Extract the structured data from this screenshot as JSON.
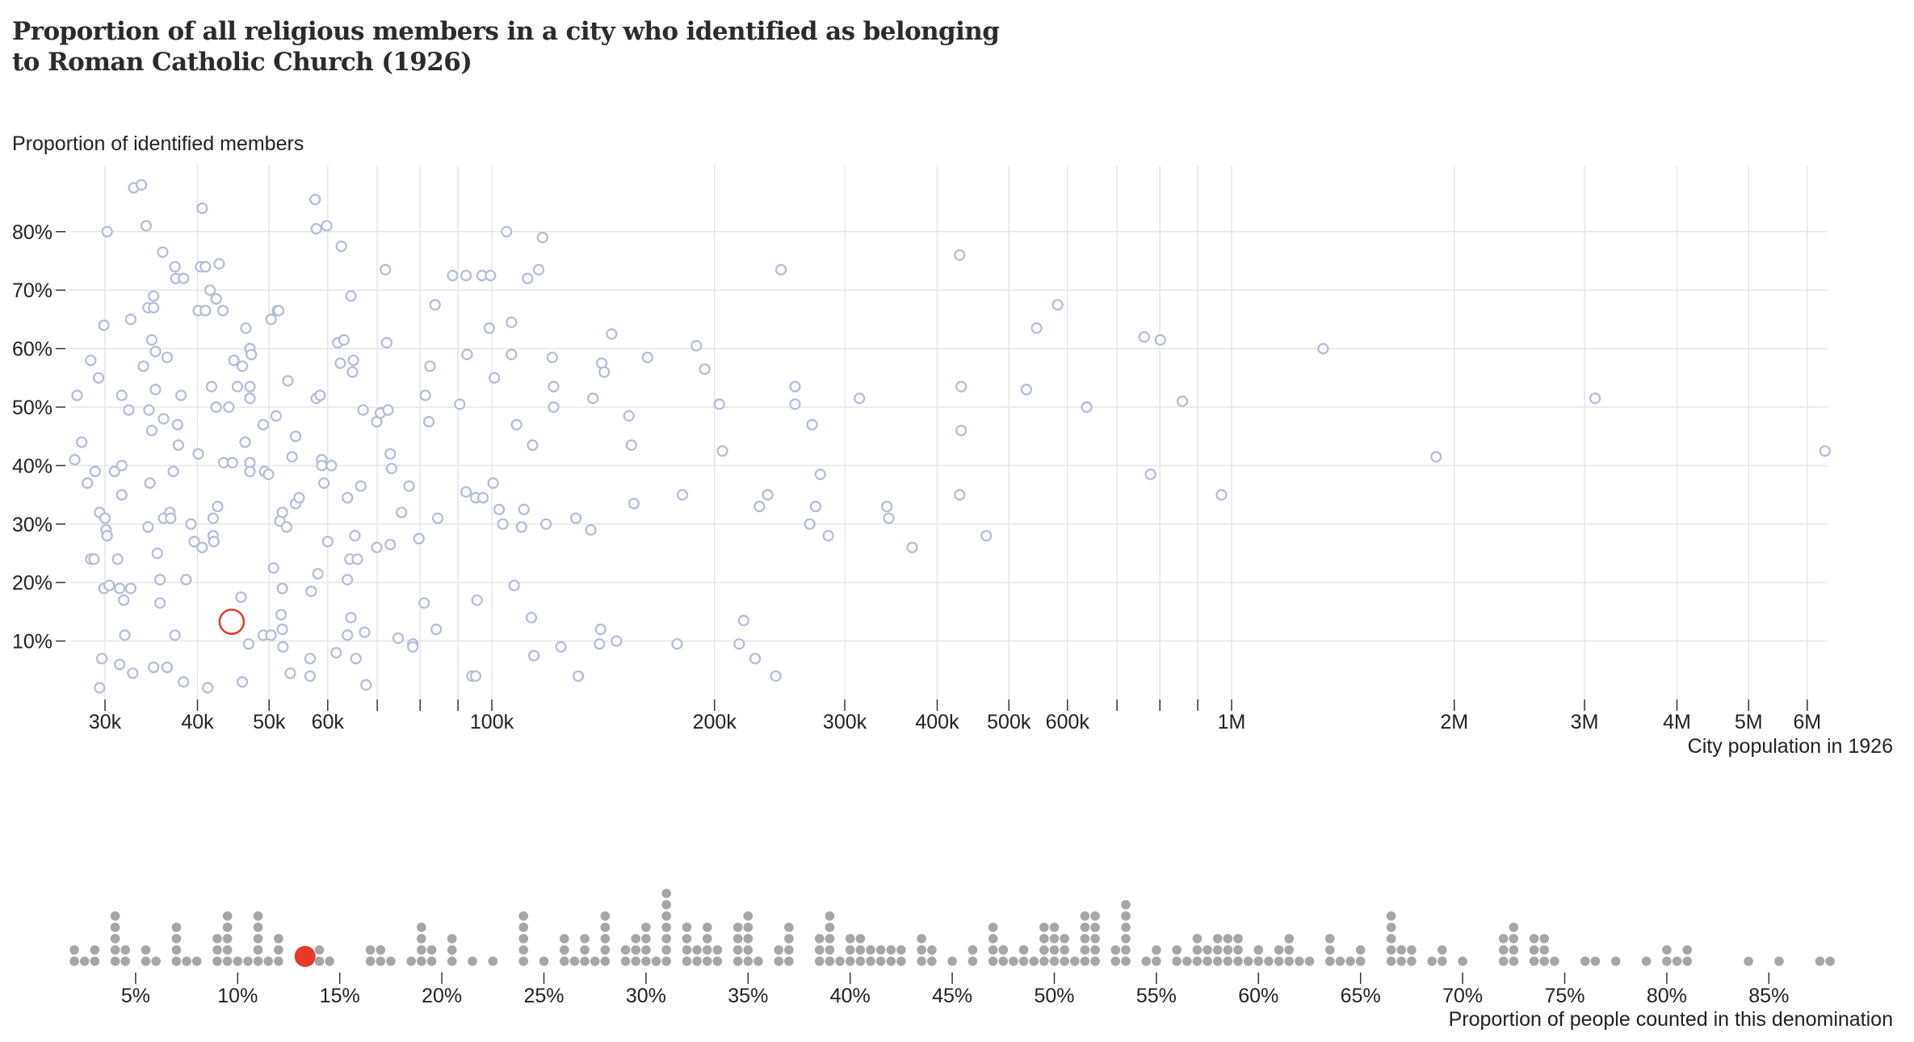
{
  "chart_data": [
    {
      "type": "scatter",
      "title": "Proportion of all religious members in a city who identified as belonging to Roman Catholic Church (1926)",
      "ylabel": "Proportion of identified members",
      "xlabel": "City population in 1926",
      "xscale": "log",
      "xlim": [
        27000,
        6600000
      ],
      "ylim": [
        0,
        90
      ],
      "grid": true,
      "x_ticks": [
        {
          "value": 30000,
          "label": "30k"
        },
        {
          "value": 40000,
          "label": "40k"
        },
        {
          "value": 50000,
          "label": "50k"
        },
        {
          "value": 60000,
          "label": "60k"
        },
        {
          "value": 70000,
          "label": ""
        },
        {
          "value": 80000,
          "label": ""
        },
        {
          "value": 90000,
          "label": ""
        },
        {
          "value": 100000,
          "label": "100k"
        },
        {
          "value": 200000,
          "label": "200k"
        },
        {
          "value": 300000,
          "label": "300k"
        },
        {
          "value": 400000,
          "label": "400k"
        },
        {
          "value": 500000,
          "label": "500k"
        },
        {
          "value": 600000,
          "label": "600k"
        },
        {
          "value": 700000,
          "label": ""
        },
        {
          "value": 800000,
          "label": ""
        },
        {
          "value": 900000,
          "label": ""
        },
        {
          "value": 1000000,
          "label": "1M"
        },
        {
          "value": 2000000,
          "label": "2M"
        },
        {
          "value": 3000000,
          "label": "3M"
        },
        {
          "value": 4000000,
          "label": "4M"
        },
        {
          "value": 5000000,
          "label": "5M"
        },
        {
          "value": 6000000,
          "label": "6M"
        }
      ],
      "y_ticks": [
        {
          "value": 10,
          "label": "10%"
        },
        {
          "value": 20,
          "label": "20%"
        },
        {
          "value": 30,
          "label": "30%"
        },
        {
          "value": 40,
          "label": "40%"
        },
        {
          "value": 50,
          "label": "50%"
        },
        {
          "value": 60,
          "label": "60%"
        },
        {
          "value": 70,
          "label": "70%"
        },
        {
          "value": 80,
          "label": "80%"
        }
      ],
      "colors": {
        "point": "#b3bdd8",
        "highlight": "#e8392a",
        "grid": "#e6e6e6"
      },
      "highlight": [
        44500,
        13.3
      ],
      "points": [
        [
          27500,
          52
        ],
        [
          27900,
          44
        ],
        [
          27300,
          41
        ],
        [
          28400,
          37
        ],
        [
          28700,
          58
        ],
        [
          29100,
          39
        ],
        [
          28700,
          24
        ],
        [
          29000,
          24
        ],
        [
          29400,
          55
        ],
        [
          29500,
          32
        ],
        [
          29900,
          64
        ],
        [
          30000,
          31
        ],
        [
          30100,
          29
        ],
        [
          30200,
          28
        ],
        [
          30200,
          80
        ],
        [
          29900,
          19
        ],
        [
          29700,
          7
        ],
        [
          29500,
          2
        ],
        [
          30400,
          19.5
        ],
        [
          30900,
          39
        ],
        [
          31200,
          24
        ],
        [
          31400,
          19
        ],
        [
          31600,
          52
        ],
        [
          31600,
          40
        ],
        [
          31600,
          35
        ],
        [
          31800,
          17
        ],
        [
          31900,
          11
        ],
        [
          32300,
          49.5
        ],
        [
          32500,
          19
        ],
        [
          32500,
          65
        ],
        [
          32800,
          87.5
        ],
        [
          32700,
          4.5
        ],
        [
          31400,
          6
        ],
        [
          33600,
          88
        ],
        [
          33800,
          57
        ],
        [
          34100,
          81
        ],
        [
          34300,
          29.5
        ],
        [
          34300,
          67
        ],
        [
          34400,
          49.5
        ],
        [
          34500,
          37
        ],
        [
          34700,
          61.5
        ],
        [
          34700,
          46
        ],
        [
          34900,
          69
        ],
        [
          34900,
          67
        ],
        [
          35100,
          59.5
        ],
        [
          34900,
          5.5
        ],
        [
          35100,
          53
        ],
        [
          35300,
          25
        ],
        [
          35600,
          20.5
        ],
        [
          35600,
          16.5
        ],
        [
          35900,
          76.5
        ],
        [
          36000,
          48
        ],
        [
          36000,
          31
        ],
        [
          36400,
          58.5
        ],
        [
          36700,
          32
        ],
        [
          36400,
          5.5
        ],
        [
          36800,
          31
        ],
        [
          37100,
          39
        ],
        [
          37300,
          74
        ],
        [
          37400,
          72
        ],
        [
          37300,
          11
        ],
        [
          37600,
          47
        ],
        [
          37700,
          43.5
        ],
        [
          38000,
          52
        ],
        [
          38300,
          3
        ],
        [
          38300,
          72
        ],
        [
          38600,
          20.5
        ],
        [
          39200,
          30
        ],
        [
          39600,
          27
        ],
        [
          40100,
          66.5
        ],
        [
          40100,
          42
        ],
        [
          40400,
          74
        ],
        [
          40600,
          84
        ],
        [
          40600,
          26
        ],
        [
          41000,
          74
        ],
        [
          41000,
          66.5
        ],
        [
          41300,
          2
        ],
        [
          41600,
          70
        ],
        [
          41800,
          53.5
        ],
        [
          42000,
          31
        ],
        [
          42000,
          28
        ],
        [
          42100,
          27
        ],
        [
          42400,
          50
        ],
        [
          42400,
          68.5
        ],
        [
          42600,
          33
        ],
        [
          42800,
          74.5
        ],
        [
          43300,
          66.5
        ],
        [
          43400,
          40.5
        ],
        [
          44100,
          50
        ],
        [
          44600,
          40.5
        ],
        [
          44800,
          58
        ],
        [
          45300,
          53.5
        ],
        [
          45800,
          17.5
        ],
        [
          46000,
          3
        ],
        [
          46000,
          57
        ],
        [
          46400,
          44
        ],
        [
          46500,
          63.5
        ],
        [
          46900,
          9.5
        ],
        [
          47100,
          60
        ],
        [
          47100,
          53.5
        ],
        [
          47100,
          51.5
        ],
        [
          47100,
          40.5
        ],
        [
          47300,
          59
        ],
        [
          47100,
          39
        ],
        [
          49100,
          47
        ],
        [
          49100,
          11
        ],
        [
          49300,
          39
        ],
        [
          49900,
          38.5
        ],
        [
          50300,
          65
        ],
        [
          50300,
          11
        ],
        [
          50700,
          22.5
        ],
        [
          51300,
          66.5
        ],
        [
          51100,
          48.5
        ],
        [
          51500,
          66.5
        ],
        [
          51700,
          30.5
        ],
        [
          51900,
          14.5
        ],
        [
          52100,
          32
        ],
        [
          52100,
          19
        ],
        [
          52100,
          12
        ],
        [
          52200,
          9
        ],
        [
          52800,
          29.5
        ],
        [
          53000,
          54.5
        ],
        [
          53400,
          4.5
        ],
        [
          53700,
          41.5
        ],
        [
          54300,
          45
        ],
        [
          54300,
          33.5
        ],
        [
          54900,
          34.5
        ],
        [
          57000,
          18.5
        ],
        [
          56800,
          7
        ],
        [
          56800,
          4
        ],
        [
          57700,
          85.5
        ],
        [
          57900,
          80.5
        ],
        [
          57900,
          51.5
        ],
        [
          58200,
          21.5
        ],
        [
          58600,
          52
        ],
        [
          58900,
          41
        ],
        [
          58900,
          40
        ],
        [
          59300,
          37
        ],
        [
          59800,
          81
        ],
        [
          60000,
          27
        ],
        [
          60700,
          40
        ],
        [
          61600,
          8
        ],
        [
          61900,
          61
        ],
        [
          62600,
          77.5
        ],
        [
          62400,
          57.5
        ],
        [
          63100,
          61.5
        ],
        [
          63800,
          34.5
        ],
        [
          63800,
          11
        ],
        [
          63800,
          20.5
        ],
        [
          64300,
          24
        ],
        [
          64500,
          14
        ],
        [
          64500,
          69
        ],
        [
          64800,
          56
        ],
        [
          65000,
          58
        ],
        [
          65300,
          28
        ],
        [
          65800,
          24
        ],
        [
          65500,
          7
        ],
        [
          66500,
          36.5
        ],
        [
          67000,
          49.5
        ],
        [
          67300,
          11.5
        ],
        [
          67600,
          2.5
        ],
        [
          69900,
          47.5
        ],
        [
          69900,
          26
        ],
        [
          70700,
          49
        ],
        [
          71800,
          73.5
        ],
        [
          72100,
          61
        ],
        [
          72400,
          49.5
        ],
        [
          72900,
          26.5
        ],
        [
          72900,
          42
        ],
        [
          73200,
          39.5
        ],
        [
          74700,
          10.5
        ],
        [
          75500,
          32
        ],
        [
          77300,
          36.5
        ],
        [
          78200,
          9.5
        ],
        [
          78200,
          9
        ],
        [
          79700,
          27.5
        ],
        [
          81000,
          16.5
        ],
        [
          81300,
          52
        ],
        [
          82200,
          47.5
        ],
        [
          82500,
          57
        ],
        [
          83800,
          67.5
        ],
        [
          84500,
          31
        ],
        [
          84100,
          12
        ],
        [
          88500,
          72.5
        ],
        [
          90500,
          50.5
        ],
        [
          92300,
          72.5
        ],
        [
          92300,
          35.5
        ],
        [
          92600,
          59
        ],
        [
          94000,
          4
        ],
        [
          95100,
          4
        ],
        [
          95100,
          34.5
        ],
        [
          95500,
          17
        ],
        [
          97000,
          72.5
        ],
        [
          97300,
          34.5
        ],
        [
          99200,
          63.5
        ],
        [
          99600,
          72.5
        ],
        [
          100400,
          37
        ],
        [
          100800,
          55
        ],
        [
          102300,
          32.5
        ],
        [
          103500,
          30
        ],
        [
          104700,
          80
        ],
        [
          106300,
          64.5
        ],
        [
          106300,
          59
        ],
        [
          107200,
          19.5
        ],
        [
          108000,
          47
        ],
        [
          109700,
          29.5
        ],
        [
          110500,
          32.5
        ],
        [
          111800,
          72
        ],
        [
          113100,
          14
        ],
        [
          113500,
          43.5
        ],
        [
          114000,
          7.5
        ],
        [
          115700,
          73.5
        ],
        [
          117100,
          79
        ],
        [
          118400,
          30
        ],
        [
          120700,
          58.5
        ],
        [
          121200,
          53.5
        ],
        [
          121200,
          50
        ],
        [
          124000,
          9
        ],
        [
          129900,
          31
        ],
        [
          130900,
          4
        ],
        [
          136100,
          29
        ],
        [
          137000,
          51.5
        ],
        [
          139800,
          9.5
        ],
        [
          140300,
          12
        ],
        [
          140800,
          57.5
        ],
        [
          141900,
          56
        ],
        [
          145200,
          62.5
        ],
        [
          147400,
          10
        ],
        [
          153200,
          48.5
        ],
        [
          154400,
          43.5
        ],
        [
          155600,
          33.5
        ],
        [
          162400,
          58.5
        ],
        [
          178000,
          9.5
        ],
        [
          181000,
          35
        ],
        [
          189000,
          60.5
        ],
        [
          194000,
          56.5
        ],
        [
          203000,
          50.5
        ],
        [
          205000,
          42.5
        ],
        [
          216000,
          9.5
        ],
        [
          219000,
          13.5
        ],
        [
          227000,
          7
        ],
        [
          230000,
          33
        ],
        [
          236000,
          35
        ],
        [
          242000,
          4
        ],
        [
          246000,
          73.5
        ],
        [
          257000,
          53.5
        ],
        [
          257000,
          50.5
        ],
        [
          271000,
          47
        ],
        [
          274000,
          33
        ],
        [
          278000,
          38.5
        ],
        [
          269000,
          30
        ],
        [
          285000,
          28
        ],
        [
          314000,
          51.5
        ],
        [
          342000,
          33
        ],
        [
          344000,
          31
        ],
        [
          370000,
          26
        ],
        [
          429000,
          76
        ],
        [
          431000,
          53.5
        ],
        [
          431000,
          46
        ],
        [
          429000,
          35
        ],
        [
          466000,
          28
        ],
        [
          528000,
          53
        ],
        [
          545000,
          63.5
        ],
        [
          582000,
          67.5
        ],
        [
          637000,
          50
        ],
        [
          762000,
          62
        ],
        [
          777000,
          38.5
        ],
        [
          801000,
          61.5
        ],
        [
          858000,
          51
        ],
        [
          969000,
          35
        ],
        [
          1330000,
          60
        ],
        [
          1890000,
          41.5
        ],
        [
          3100000,
          51.5
        ],
        [
          6340000,
          42.5
        ]
      ]
    },
    {
      "type": "beeswarm",
      "xlabel": "Proportion of people counted in this denomination",
      "xlim": [
        0,
        90
      ],
      "x_ticks": [
        {
          "value": 5,
          "label": "5%"
        },
        {
          "value": 10,
          "label": "10%"
        },
        {
          "value": 15,
          "label": "15%"
        },
        {
          "value": 20,
          "label": "20%"
        },
        {
          "value": 25,
          "label": "25%"
        },
        {
          "value": 30,
          "label": "30%"
        },
        {
          "value": 35,
          "label": "35%"
        },
        {
          "value": 40,
          "label": "40%"
        },
        {
          "value": 45,
          "label": "45%"
        },
        {
          "value": 50,
          "label": "50%"
        },
        {
          "value": 55,
          "label": "55%"
        },
        {
          "value": 60,
          "label": "60%"
        },
        {
          "value": 65,
          "label": "65%"
        },
        {
          "value": 70,
          "label": "70%"
        },
        {
          "value": 75,
          "label": "75%"
        },
        {
          "value": 80,
          "label": "80%"
        },
        {
          "value": 85,
          "label": "85%"
        }
      ],
      "colors": {
        "dot": "#a6a6a6",
        "highlight": "#e8392a"
      },
      "highlight": 13.3,
      "values_source": "same cities as scatter (proportion values)"
    }
  ]
}
